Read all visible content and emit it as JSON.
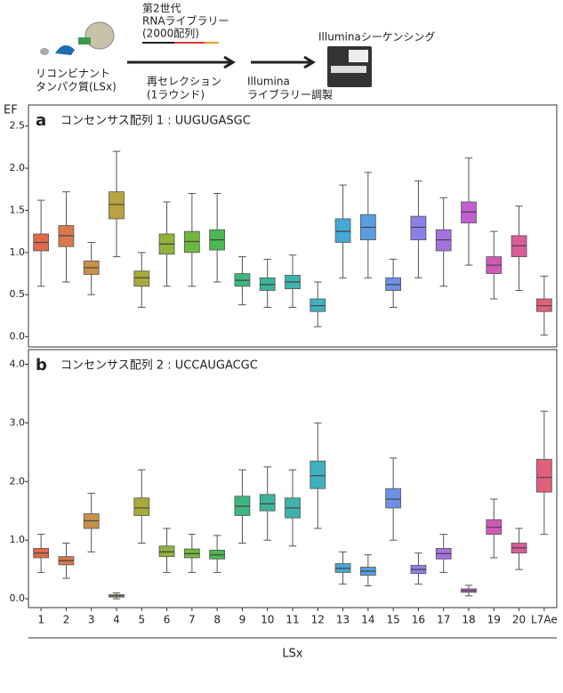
{
  "diagram": {
    "protein": [
      "リコンビナント",
      "タンパク質(LSx)"
    ],
    "library": [
      "第2世代",
      "RNAライブラリー",
      "(2000配列)"
    ],
    "reselection": [
      "再セレクション",
      "(1ラウンド)"
    ],
    "prep": [
      "Illumina",
      "ライブラリー調製"
    ],
    "sequencing": [
      "Illuminaシーケンシング"
    ]
  },
  "chart_data": [
    {
      "type": "box",
      "panel": "a",
      "title": "コンセンサス配列 1 : UUGUGASGC",
      "ylabel": "EF",
      "ylim": [
        -0.12,
        2.75
      ],
      "yticks": [
        {
          "value": 0,
          "label": "0.0"
        },
        0.5,
        {
          "value": 1,
          "label": "1.0"
        },
        1.5,
        {
          "value": 2,
          "label": "2.0"
        },
        2.5
      ],
      "colors": [
        "#e0694a",
        "#d87a4d",
        "#c8904a",
        "#b9a23f",
        "#a8ab3a",
        "#8fb33b",
        "#6fb83d",
        "#4bb851",
        "#3db681",
        "#3db49a",
        "#3eb2ad",
        "#40afbf",
        "#45a8d4",
        "#5a9de0",
        "#6e8fe6",
        "#8b80e6",
        "#a572e0",
        "#c060cf",
        "#d258b5",
        "#db5b98",
        "#e0607a"
      ],
      "median": [
        1.12,
        1.2,
        0.82,
        1.57,
        0.7,
        1.1,
        1.13,
        1.15,
        0.67,
        0.62,
        0.65,
        0.37,
        1.25,
        1.3,
        0.62,
        1.3,
        1.15,
        1.48,
        0.85,
        1.08,
        0.37
      ],
      "q1": [
        1.02,
        1.07,
        0.74,
        1.4,
        0.6,
        0.98,
        1.0,
        1.03,
        0.6,
        0.55,
        0.57,
        0.3,
        1.12,
        1.15,
        0.55,
        1.15,
        1.02,
        1.35,
        0.75,
        0.95,
        0.3
      ],
      "q3": [
        1.22,
        1.32,
        0.9,
        1.72,
        0.78,
        1.22,
        1.25,
        1.27,
        0.75,
        0.7,
        0.73,
        0.45,
        1.4,
        1.45,
        0.7,
        1.43,
        1.27,
        1.6,
        0.95,
        1.2,
        0.45
      ],
      "whisker_low": [
        0.6,
        0.65,
        0.5,
        0.95,
        0.35,
        0.6,
        0.6,
        0.65,
        0.38,
        0.35,
        0.35,
        0.12,
        0.7,
        0.7,
        0.35,
        0.7,
        0.6,
        0.85,
        0.45,
        0.55,
        0.02
      ],
      "whisker_high": [
        1.62,
        1.72,
        1.12,
        2.2,
        1.0,
        1.6,
        1.7,
        1.7,
        0.95,
        0.92,
        0.97,
        0.65,
        1.8,
        1.95,
        0.92,
        1.85,
        1.65,
        2.12,
        1.25,
        1.55,
        0.72
      ]
    },
    {
      "type": "box",
      "panel": "b",
      "title": "コンセンサス配列 2 : UCCAUGACGC",
      "xlabel": "LSx",
      "categories": [
        "1",
        "2",
        "3",
        "4",
        "5",
        "6",
        "7",
        "8",
        "9",
        "10",
        "11",
        "12",
        "13",
        "14",
        "15",
        "16",
        "17",
        "18",
        "19",
        "20",
        "L7Ae"
      ],
      "ylim": [
        -0.15,
        4.25
      ],
      "yticks": [
        {
          "value": 0,
          "label": "0.0"
        },
        {
          "value": 1,
          "label": "1.0"
        },
        {
          "value": 2,
          "label": "2.0"
        },
        {
          "value": 3,
          "label": "3.0"
        },
        {
          "value": 4,
          "label": "4.0"
        }
      ],
      "colors": [
        "#e0694a",
        "#d87a4d",
        "#c8904a",
        "#b9a23f",
        "#a8ab3a",
        "#8fb33b",
        "#6fb83d",
        "#4bb851",
        "#3db681",
        "#3db49a",
        "#3eb2ad",
        "#40afbf",
        "#45a8d4",
        "#5a9de0",
        "#6e8fe6",
        "#8b80e6",
        "#a572e0",
        "#c060cf",
        "#d258b5",
        "#db5b98",
        "#e0607a"
      ],
      "median": [
        0.78,
        0.65,
        1.33,
        0.05,
        1.55,
        0.8,
        0.77,
        0.75,
        1.58,
        1.62,
        1.55,
        2.1,
        0.52,
        0.47,
        1.7,
        0.5,
        0.77,
        0.14,
        1.22,
        0.87,
        2.07
      ],
      "q1": [
        0.7,
        0.58,
        1.2,
        0.03,
        1.42,
        0.72,
        0.7,
        0.68,
        1.42,
        1.5,
        1.38,
        1.88,
        0.45,
        0.4,
        1.55,
        0.43,
        0.68,
        0.11,
        1.1,
        0.78,
        1.82
      ],
      "q3": [
        0.86,
        0.72,
        1.45,
        0.07,
        1.72,
        0.9,
        0.85,
        0.83,
        1.75,
        1.78,
        1.72,
        2.35,
        0.6,
        0.54,
        1.88,
        0.57,
        0.86,
        0.17,
        1.35,
        0.95,
        2.38
      ],
      "whisker_low": [
        0.45,
        0.35,
        0.8,
        0.0,
        0.95,
        0.45,
        0.45,
        0.45,
        0.95,
        1.0,
        0.9,
        1.2,
        0.25,
        0.22,
        1.0,
        0.25,
        0.45,
        0.05,
        0.7,
        0.5,
        1.1
      ],
      "whisker_high": [
        1.1,
        0.95,
        1.8,
        0.1,
        2.2,
        1.2,
        1.1,
        1.08,
        2.2,
        2.25,
        2.2,
        3.0,
        0.8,
        0.75,
        2.4,
        0.78,
        1.1,
        0.23,
        1.7,
        1.2,
        3.2
      ]
    }
  ]
}
